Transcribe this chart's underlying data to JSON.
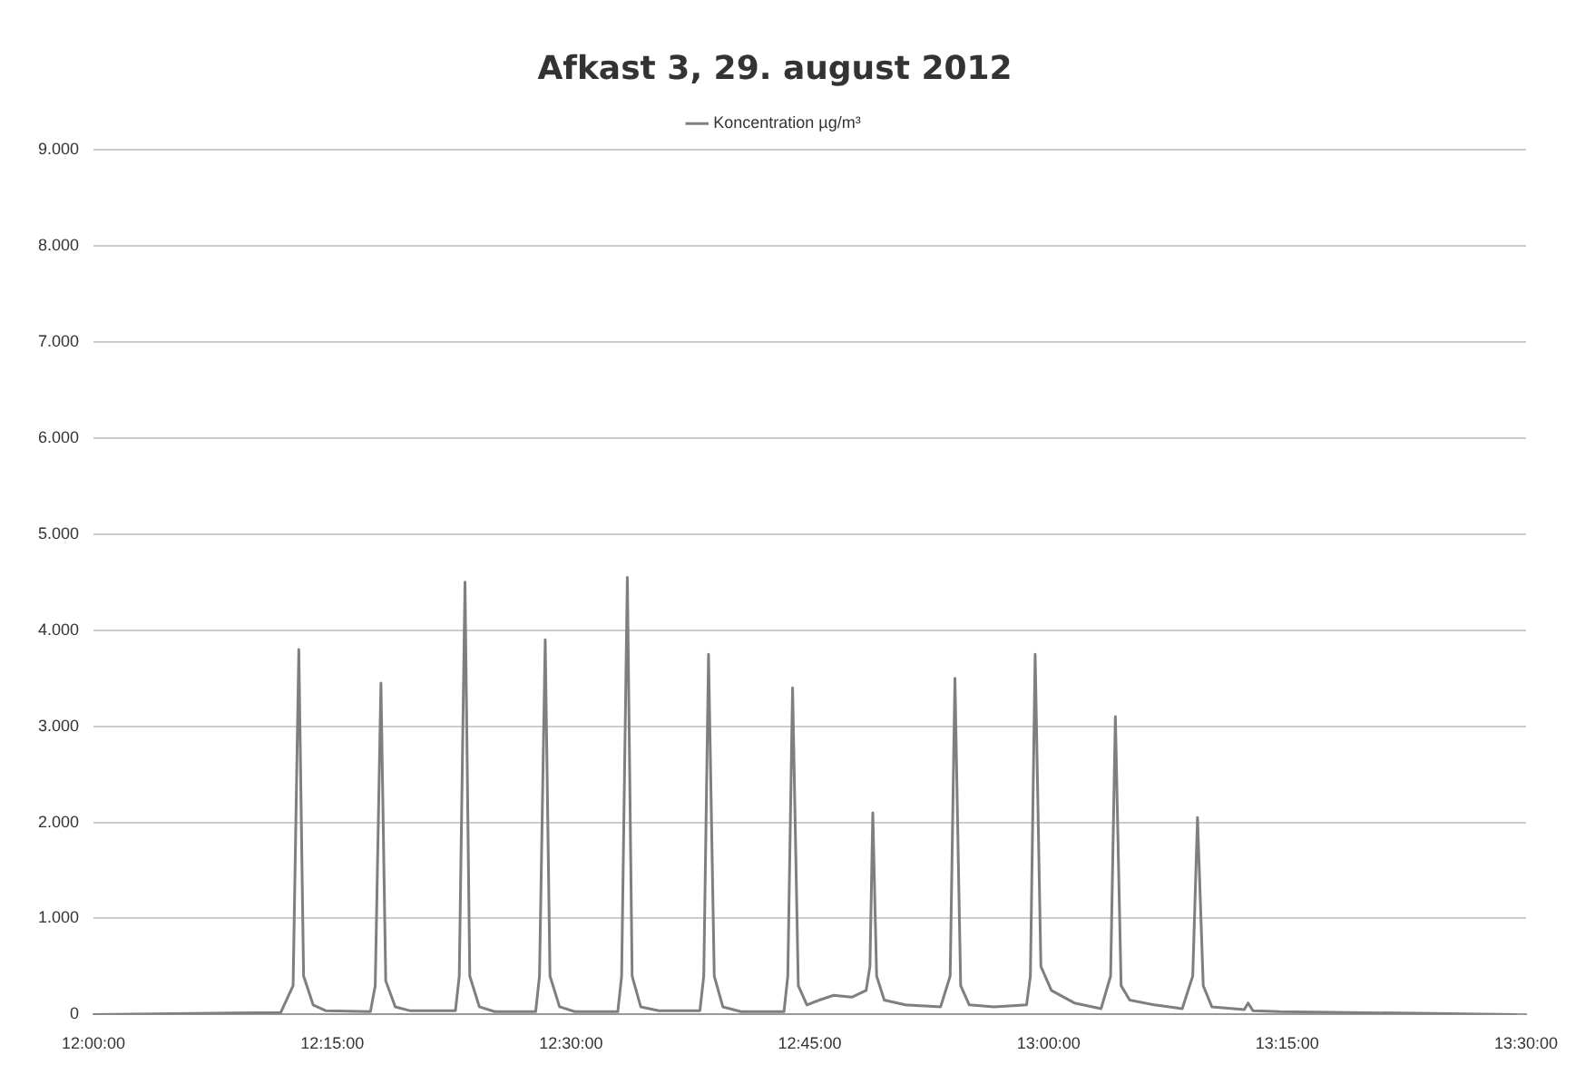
{
  "chart_data": {
    "type": "line",
    "title": "Afkast 3, 29. august 2012",
    "grid": "y",
    "legend": "top",
    "marker": "none",
    "line_style": "solid",
    "xlim": [
      12,
      13.5
    ],
    "xticks": [
      {
        "value": 12,
        "label": "12:00:00"
      },
      {
        "value": 12.25,
        "label": "12:15:00"
      },
      {
        "value": 12.5,
        "label": "12:30:00"
      },
      {
        "value": 12.75,
        "label": "12:45:00"
      },
      {
        "value": 13,
        "label": "13:00:00"
      },
      {
        "value": 13.25,
        "label": "13:15:00"
      },
      {
        "value": 13.5,
        "label": "13:30:00"
      }
    ],
    "ylim": [
      0,
      9000
    ],
    "yticks": [
      0,
      {
        "value": 1000,
        "label": "1.000"
      },
      {
        "value": 2000,
        "label": "2.000"
      },
      {
        "value": 3000,
        "label": "3.000"
      },
      {
        "value": 4000,
        "label": "4.000"
      },
      {
        "value": 5000,
        "label": "5.000"
      },
      {
        "value": 6000,
        "label": "6.000"
      },
      {
        "value": 7000,
        "label": "7.000"
      },
      {
        "value": 8000,
        "label": "8.000"
      },
      {
        "value": 9000,
        "label": "9.000"
      }
    ],
    "series": [
      {
        "name": "Koncentration µg/m³",
        "color": "#7f7f7f",
        "x": [
          12,
          12.196,
          12.209,
          12.215,
          12.22,
          12.23,
          12.243,
          12.29,
          12.295,
          12.301,
          12.306,
          12.316,
          12.331,
          12.379,
          12.383,
          12.389,
          12.394,
          12.404,
          12.42,
          12.463,
          12.467,
          12.473,
          12.478,
          12.488,
          12.504,
          12.549,
          12.553,
          12.559,
          12.564,
          12.573,
          12.592,
          12.635,
          12.639,
          12.644,
          12.65,
          12.659,
          12.678,
          12.723,
          12.727,
          12.732,
          12.738,
          12.747,
          12.76,
          12.775,
          12.794,
          12.809,
          12.813,
          12.816,
          12.82,
          12.828,
          12.85,
          12.887,
          12.897,
          12.902,
          12.908,
          12.917,
          12.943,
          12.977,
          12.981,
          12.986,
          12.992,
          13.003,
          13.027,
          13.055,
          13.065,
          13.07,
          13.076,
          13.085,
          13.111,
          13.14,
          13.151,
          13.156,
          13.162,
          13.171,
          13.205,
          13.209,
          13.214,
          13.242,
          13.49
        ],
        "values": [
          0,
          20,
          300,
          3800,
          400,
          100,
          40,
          30,
          300,
          3450,
          350,
          80,
          40,
          40,
          400,
          4500,
          400,
          80,
          30,
          30,
          400,
          3900,
          400,
          80,
          30,
          30,
          400,
          4550,
          400,
          80,
          40,
          40,
          400,
          3750,
          400,
          80,
          30,
          30,
          400,
          3400,
          300,
          100,
          150,
          200,
          180,
          250,
          500,
          2100,
          400,
          150,
          100,
          80,
          400,
          3500,
          300,
          100,
          80,
          100,
          400,
          3750,
          500,
          250,
          120,
          60,
          400,
          3100,
          300,
          150,
          100,
          60,
          400,
          2050,
          300,
          80,
          50,
          120,
          40,
          30,
          0
        ]
      }
    ]
  }
}
